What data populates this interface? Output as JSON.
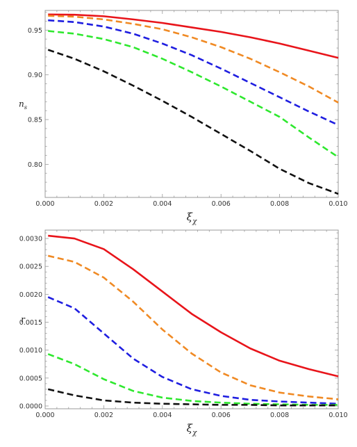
{
  "chart_data": [
    {
      "type": "line",
      "ylabel_main": "n",
      "ylabel_sub": "s",
      "xlabel_main": "ξ",
      "xlabel_sub": "χ",
      "xlim": [
        0.0,
        0.01
      ],
      "ylim": [
        0.763,
        0.972
      ],
      "x_ticks": [
        0.0,
        0.002,
        0.004,
        0.006,
        0.008,
        0.01
      ],
      "x_tick_labels": [
        "0.000",
        "0.002",
        "0.004",
        "0.006",
        "0.008",
        "0.010"
      ],
      "y_ticks": [
        0.8,
        0.85,
        0.9,
        0.95
      ],
      "y_tick_labels": [
        "0.80",
        "0.85",
        "0.90",
        "0.95"
      ],
      "grid": false,
      "series": [
        {
          "color": "#e8141a",
          "dash": "solid",
          "x": [
            0.0001,
            0.001,
            0.002,
            0.003,
            0.004,
            0.005,
            0.006,
            0.007,
            0.008,
            0.009,
            0.01
          ],
          "values": [
            0.9675,
            0.9672,
            0.9655,
            0.962,
            0.958,
            0.953,
            0.948,
            0.942,
            0.935,
            0.927,
            0.919
          ]
        },
        {
          "color": "#f08a24",
          "dash": "dashed",
          "x": [
            0.0001,
            0.001,
            0.002,
            0.003,
            0.004,
            0.005,
            0.006,
            0.007,
            0.008,
            0.009,
            0.01
          ],
          "values": [
            0.966,
            0.965,
            0.962,
            0.957,
            0.951,
            0.942,
            0.931,
            0.918,
            0.903,
            0.887,
            0.869
          ]
        },
        {
          "color": "#1f1ee0",
          "dash": "dashed",
          "x": [
            0.0001,
            0.001,
            0.002,
            0.003,
            0.004,
            0.005,
            0.006,
            0.007,
            0.008,
            0.009,
            0.01
          ],
          "values": [
            0.961,
            0.959,
            0.954,
            0.946,
            0.935,
            0.922,
            0.907,
            0.891,
            0.875,
            0.859,
            0.844
          ]
        },
        {
          "color": "#2ee82e",
          "dash": "dashed",
          "x": [
            0.0001,
            0.001,
            0.002,
            0.003,
            0.004,
            0.005,
            0.006,
            0.007,
            0.008,
            0.009,
            0.01
          ],
          "values": [
            0.949,
            0.946,
            0.94,
            0.931,
            0.918,
            0.903,
            0.887,
            0.87,
            0.853,
            0.83,
            0.808
          ]
        },
        {
          "color": "#111111",
          "dash": "dashed",
          "x": [
            0.0001,
            0.001,
            0.002,
            0.003,
            0.004,
            0.005,
            0.006,
            0.007,
            0.008,
            0.009,
            0.01
          ],
          "values": [
            0.928,
            0.918,
            0.904,
            0.888,
            0.871,
            0.853,
            0.834,
            0.815,
            0.795,
            0.779,
            0.767
          ]
        }
      ]
    },
    {
      "type": "line",
      "ylabel_main": "r",
      "ylabel_sub": "",
      "xlabel_main": "ξ",
      "xlabel_sub": "χ",
      "xlim": [
        0.0,
        0.01
      ],
      "ylim": [
        -5e-05,
        0.00315
      ],
      "x_ticks": [
        0.0,
        0.002,
        0.004,
        0.006,
        0.008,
        0.01
      ],
      "x_tick_labels": [
        "0.000",
        "0.002",
        "0.004",
        "0.006",
        "0.008",
        "0.010"
      ],
      "y_ticks": [
        0.0,
        0.0005,
        0.001,
        0.0015,
        0.002,
        0.0025,
        0.003
      ],
      "y_tick_labels": [
        "0.0000",
        "0.0005",
        "0.0010",
        "0.0015",
        "0.0020",
        "0.0025",
        "0.0030"
      ],
      "grid": false,
      "series": [
        {
          "color": "#e8141a",
          "dash": "solid",
          "x": [
            0.0001,
            0.001,
            0.002,
            0.003,
            0.004,
            0.005,
            0.006,
            0.007,
            0.008,
            0.009,
            0.01
          ],
          "values": [
            0.00305,
            0.003,
            0.00281,
            0.00245,
            0.00205,
            0.00165,
            0.00132,
            0.00103,
            0.00081,
            0.00066,
            0.00053
          ]
        },
        {
          "color": "#f08a24",
          "dash": "dashed",
          "x": [
            0.0001,
            0.001,
            0.002,
            0.003,
            0.004,
            0.005,
            0.006,
            0.007,
            0.008,
            0.009,
            0.01
          ],
          "values": [
            0.00269,
            0.00258,
            0.0023,
            0.00187,
            0.00137,
            0.00094,
            0.0006,
            0.00037,
            0.00024,
            0.00017,
            0.00012
          ]
        },
        {
          "color": "#1f1ee0",
          "dash": "dashed",
          "x": [
            0.0001,
            0.001,
            0.002,
            0.003,
            0.004,
            0.005,
            0.006,
            0.007,
            0.008,
            0.009,
            0.01
          ],
          "values": [
            0.00195,
            0.00175,
            0.0013,
            0.00085,
            0.00052,
            0.0003,
            0.00018,
            0.00011,
            8e-05,
            6e-05,
            4e-05
          ]
        },
        {
          "color": "#2ee82e",
          "dash": "dashed",
          "x": [
            0.0001,
            0.001,
            0.002,
            0.003,
            0.004,
            0.005,
            0.006,
            0.007,
            0.008,
            0.009,
            0.01
          ],
          "values": [
            0.00093,
            0.00075,
            0.00048,
            0.00027,
            0.00015,
            9e-05,
            6e-05,
            4e-05,
            3e-05,
            2e-05,
            2e-05
          ]
        },
        {
          "color": "#111111",
          "dash": "dashed",
          "x": [
            0.0001,
            0.001,
            0.002,
            0.003,
            0.004,
            0.005,
            0.006,
            0.007,
            0.008,
            0.009,
            0.01
          ],
          "values": [
            0.0003,
            0.00019,
            0.0001,
            6e-05,
            4e-05,
            3e-05,
            2e-05,
            2e-05,
            1e-05,
            1e-05,
            1e-05
          ]
        }
      ]
    }
  ]
}
